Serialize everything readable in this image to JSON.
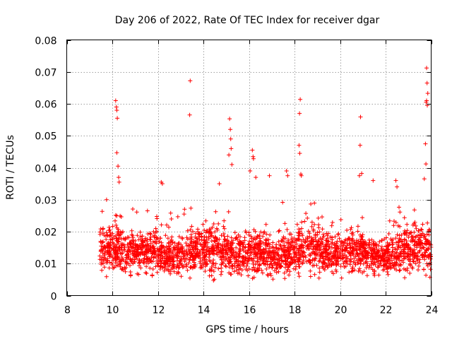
{
  "chart_data": {
    "type": "scatter",
    "title": "Day 206 of 2022, Rate Of TEC Index for receiver dgar",
    "xlabel": "GPS time / hours",
    "ylabel": "ROTI / TECUs",
    "xlim": [
      8,
      24
    ],
    "ylim": [
      0,
      0.08
    ],
    "grid": true,
    "marker": "+",
    "marker_color": "#ff0000",
    "x_ticks": [
      "8",
      "10",
      "12",
      "14",
      "16",
      "18",
      "20",
      "22",
      "24"
    ],
    "x_tick_values": [
      8,
      10,
      12,
      14,
      16,
      18,
      20,
      22,
      24
    ],
    "y_ticks": [
      "0",
      "0.01",
      "0.02",
      "0.03",
      "0.04",
      "0.05",
      "0.06",
      "0.07",
      "0.08"
    ],
    "y_tick_values": [
      0,
      0.01,
      0.02,
      0.03,
      0.04,
      0.05,
      0.06,
      0.07,
      0.08
    ],
    "bulk_cloud": {
      "description_x_range": [
        9.45,
        24.0
      ],
      "typical_y_range": [
        0.003,
        0.025
      ],
      "upper_edge_y": [
        0.028,
        0.035
      ]
    },
    "notable_points": [
      {
        "x": 10.15,
        "y": 0.061
      },
      {
        "x": 10.18,
        "y": 0.059
      },
      {
        "x": 10.2,
        "y": 0.058
      },
      {
        "x": 10.22,
        "y": 0.0555
      },
      {
        "x": 10.2,
        "y": 0.0447
      },
      {
        "x": 10.25,
        "y": 0.0405
      },
      {
        "x": 10.28,
        "y": 0.037
      },
      {
        "x": 10.3,
        "y": 0.0355
      },
      {
        "x": 13.42,
        "y": 0.0672
      },
      {
        "x": 13.4,
        "y": 0.0565
      },
      {
        "x": 15.15,
        "y": 0.0553
      },
      {
        "x": 15.18,
        "y": 0.052
      },
      {
        "x": 15.2,
        "y": 0.049
      },
      {
        "x": 15.22,
        "y": 0.046
      },
      {
        "x": 15.12,
        "y": 0.044
      },
      {
        "x": 15.25,
        "y": 0.041
      },
      {
        "x": 16.15,
        "y": 0.0455
      },
      {
        "x": 16.18,
        "y": 0.0435
      },
      {
        "x": 16.2,
        "y": 0.0428
      },
      {
        "x": 16.05,
        "y": 0.039
      },
      {
        "x": 16.3,
        "y": 0.037
      },
      {
        "x": 18.25,
        "y": 0.0614
      },
      {
        "x": 18.22,
        "y": 0.057
      },
      {
        "x": 18.2,
        "y": 0.047
      },
      {
        "x": 18.23,
        "y": 0.0445
      },
      {
        "x": 18.28,
        "y": 0.038
      },
      {
        "x": 18.3,
        "y": 0.0375
      },
      {
        "x": 17.65,
        "y": 0.039
      },
      {
        "x": 17.7,
        "y": 0.0375
      },
      {
        "x": 20.9,
        "y": 0.0559
      },
      {
        "x": 20.88,
        "y": 0.047
      },
      {
        "x": 20.95,
        "y": 0.0382
      },
      {
        "x": 20.85,
        "y": 0.0375
      },
      {
        "x": 21.45,
        "y": 0.036
      },
      {
        "x": 23.8,
        "y": 0.0712
      },
      {
        "x": 23.82,
        "y": 0.0665
      },
      {
        "x": 23.85,
        "y": 0.0633
      },
      {
        "x": 23.8,
        "y": 0.061
      },
      {
        "x": 23.78,
        "y": 0.0605
      },
      {
        "x": 23.83,
        "y": 0.0595
      },
      {
        "x": 23.75,
        "y": 0.0475
      },
      {
        "x": 23.77,
        "y": 0.0412
      },
      {
        "x": 23.7,
        "y": 0.0365
      },
      {
        "x": 22.45,
        "y": 0.036
      },
      {
        "x": 22.5,
        "y": 0.034
      },
      {
        "x": 14.7,
        "y": 0.035
      },
      {
        "x": 16.9,
        "y": 0.0375
      },
      {
        "x": 12.15,
        "y": 0.0355
      },
      {
        "x": 12.2,
        "y": 0.035
      }
    ]
  }
}
